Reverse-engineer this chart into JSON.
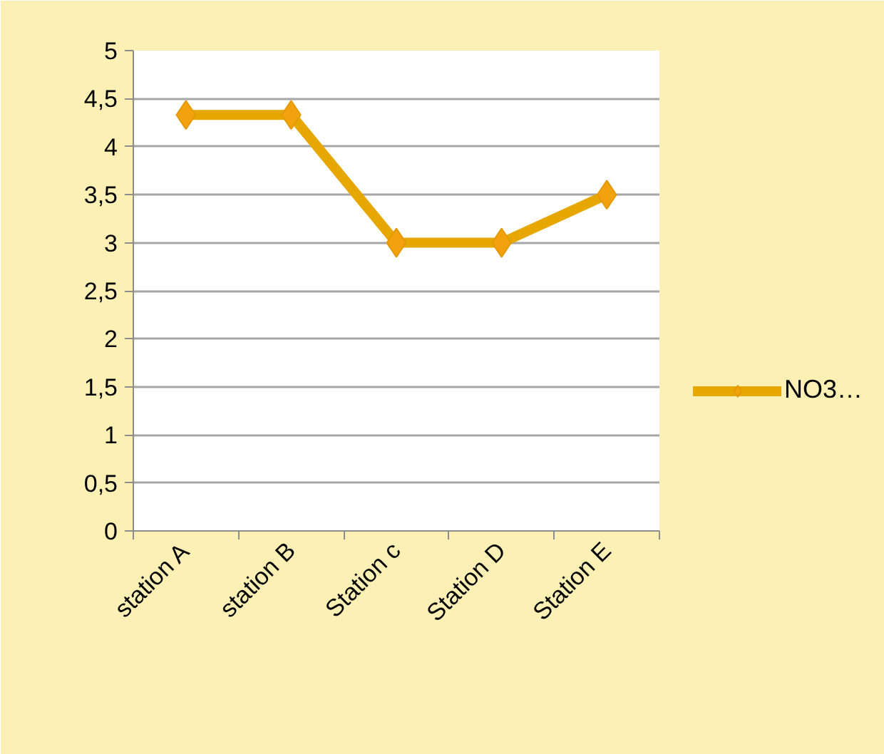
{
  "chart_data": {
    "type": "line",
    "categories": [
      "station A",
      "station B",
      "Station c",
      "Station D",
      "Station E"
    ],
    "series": [
      {
        "name": "NO3…",
        "color": "#e6a700",
        "values": [
          4.33,
          4.33,
          3,
          3,
          3.5
        ]
      }
    ],
    "ylim": [
      0,
      5
    ],
    "yticks": [
      0,
      {
        "value": 0.5,
        "label": "0,5"
      },
      1,
      {
        "value": 1.5,
        "label": "1,5"
      },
      2,
      {
        "value": 2.5,
        "label": "2,5"
      },
      3,
      {
        "value": 3.5,
        "label": "3,5"
      },
      4,
      {
        "value": 4.5,
        "label": "4,5"
      },
      5
    ],
    "grid": "y",
    "legend": "right",
    "marker": "diamond",
    "line_style": "solid"
  }
}
